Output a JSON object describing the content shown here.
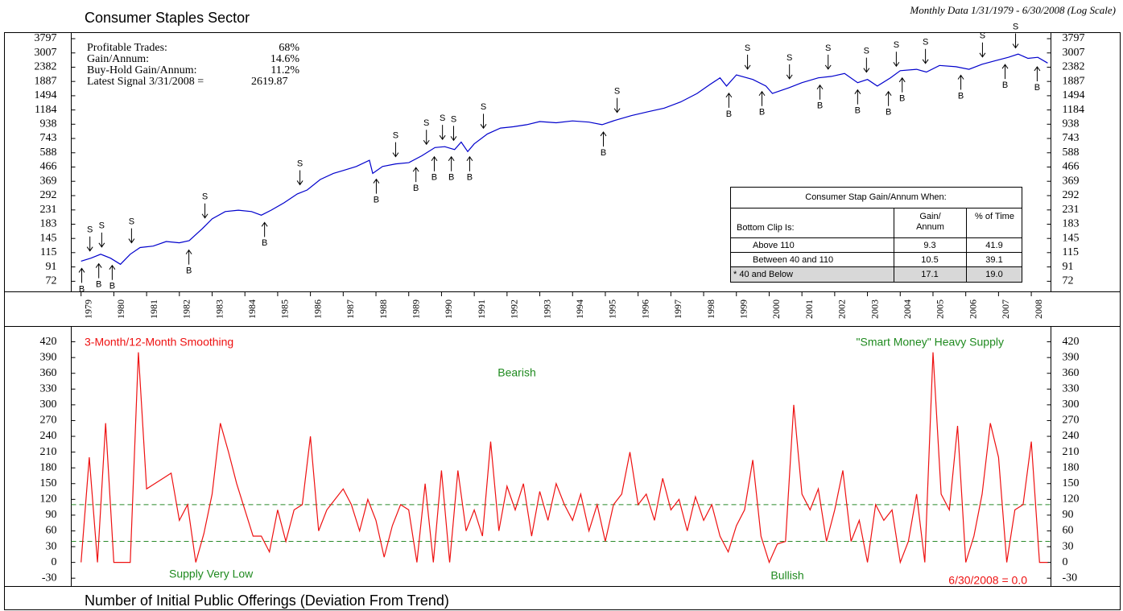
{
  "chart_data": [
    {
      "type": "line",
      "title": "Consumer Staples Sector",
      "subtitle": "Monthly Data 1/31/1979 - 6/30/2008 (Log Scale)",
      "x": [
        1979.0,
        1979.3,
        1979.6,
        1979.9,
        1980.2,
        1980.5,
        1980.8,
        1981.2,
        1981.6,
        1982.0,
        1982.3,
        1982.7,
        1983.0,
        1983.4,
        1983.8,
        1984.2,
        1984.5,
        1984.8,
        1985.2,
        1985.6,
        1985.9,
        1986.3,
        1986.7,
        1987.0,
        1987.4,
        1987.8,
        1987.9,
        1988.2,
        1988.6,
        1989.0,
        1989.4,
        1989.8,
        1990.1,
        1990.4,
        1990.6,
        1990.8,
        1991.0,
        1991.4,
        1991.8,
        1992.2,
        1992.6,
        1993.0,
        1993.5,
        1994.0,
        1994.5,
        1994.9,
        1995.3,
        1995.8,
        1996.3,
        1996.8,
        1997.3,
        1997.8,
        1998.2,
        1998.5,
        1998.7,
        1999.0,
        1999.5,
        1999.9,
        2000.1,
        2000.6,
        2001.0,
        2001.5,
        2001.9,
        2002.3,
        2002.7,
        2003.0,
        2003.3,
        2003.7,
        2004.0,
        2004.5,
        2004.8,
        2005.2,
        2005.7,
        2006.1,
        2006.5,
        2006.9,
        2007.3,
        2007.6,
        2007.9,
        2008.2,
        2008.5
      ],
      "values": [
        100,
        105,
        112,
        105,
        95,
        112,
        125,
        128,
        138,
        135,
        140,
        170,
        200,
        225,
        230,
        225,
        212,
        230,
        260,
        300,
        320,
        380,
        420,
        440,
        470,
        520,
        420,
        470,
        490,
        500,
        560,
        640,
        650,
        620,
        700,
        600,
        680,
        800,
        880,
        900,
        930,
        980,
        960,
        990,
        970,
        930,
        1000,
        1080,
        1150,
        1220,
        1350,
        1550,
        1800,
        2000,
        1750,
        2100,
        1950,
        1750,
        1550,
        1700,
        1850,
        2000,
        2050,
        2150,
        1850,
        1950,
        1750,
        2000,
        2250,
        2300,
        2200,
        2450,
        2400,
        2300,
        2500,
        2650,
        2800,
        2950,
        2750,
        2800,
        2550
      ],
      "color": "#0000cc",
      "log_scale": true,
      "ylim": [
        61,
        4220
      ],
      "yticks": [
        72,
        91,
        115,
        145,
        183,
        231,
        292,
        369,
        466,
        588,
        743,
        938,
        1184,
        1494,
        1887,
        2382,
        3007,
        3797
      ],
      "xlim": [
        1978.7,
        2008.6
      ],
      "xticks": [
        1979,
        1980,
        1981,
        1982,
        1983,
        1984,
        1985,
        1986,
        1987,
        1988,
        1989,
        1990,
        1991,
        1992,
        1993,
        1994,
        1995,
        1996,
        1997,
        1998,
        1999,
        2000,
        2001,
        2002,
        2003,
        2004,
        2005,
        2006,
        2007,
        2008
      ],
      "signals": {
        "x": [
          1979.27,
          1979.63,
          1980.54,
          1982.78,
          1985.68,
          1988.6,
          1989.54,
          1990.03,
          1990.37,
          1991.28,
          1995.36,
          1999.34,
          2000.62,
          2001.8,
          2002.97,
          2003.88,
          2004.77,
          2006.51,
          2007.52,
          1979.02,
          1979.54,
          1979.95,
          1982.29,
          1984.6,
          1988.01,
          1989.22,
          1989.78,
          1990.3,
          1990.86,
          1994.94,
          1998.77,
          1999.78,
          2001.55,
          2002.7,
          2003.64,
          2004.06,
          2005.85,
          2007.2,
          2008.18
        ],
        "values": [
          105,
          112,
          120,
          180,
          310,
          490,
          600,
          650,
          640,
          780,
          1010,
          2050,
          1750,
          2050,
          1950,
          2150,
          2250,
          2500,
          2900,
          100,
          108,
          105,
          135,
          212,
          430,
          520,
          620,
          620,
          620,
          930,
          1750,
          1800,
          2000,
          1850,
          1800,
          2250,
          2350,
          2800,
          2700
        ],
        "labels": [
          "S",
          "S",
          "S",
          "S",
          "S",
          "S",
          "S",
          "S",
          "S",
          "S",
          "S",
          "S",
          "S",
          "S",
          "S",
          "S",
          "S",
          "S",
          "S",
          "B",
          "B",
          "B",
          "B",
          "B",
          "B",
          "B",
          "B",
          "B",
          "B",
          "B",
          "B",
          "B",
          "B",
          "B",
          "B",
          "B",
          "B",
          "B",
          "B"
        ]
      },
      "stats": [
        {
          "label": "Profitable Trades:",
          "value": "68%"
        },
        {
          "label": "Gain/Annum:",
          "value": "14.6%"
        },
        {
          "label": "Buy-Hold Gain/Annum:",
          "value": "11.2%"
        },
        {
          "label": "Latest Signal 3/31/2008 =",
          "value": "2619.87"
        }
      ],
      "table": {
        "title": "Consumer Stap Gain/Annum When:",
        "header": [
          "Bottom Clip Is:",
          "Gain/ Annum",
          "% of Time"
        ],
        "rows": [
          [
            "Above 110",
            "9.3",
            "41.9"
          ],
          [
            "Between 40 and 110",
            "10.5",
            "39.1"
          ],
          [
            "* 40 and Below",
            "17.1",
            "19.0"
          ]
        ]
      }
    },
    {
      "type": "line",
      "title": "Number of Initial Public Offerings (Deviation From Trend)",
      "x": [
        1979.0,
        1979.25,
        1979.5,
        1979.75,
        1980.0,
        1980.25,
        1980.5,
        1980.75,
        1981.0,
        1981.25,
        1981.5,
        1981.75,
        1982.0,
        1982.25,
        1982.5,
        1982.75,
        1983.0,
        1983.25,
        1983.5,
        1983.75,
        1984.0,
        1984.25,
        1984.5,
        1984.75,
        1985.0,
        1985.25,
        1985.5,
        1985.75,
        1986.0,
        1986.25,
        1986.5,
        1986.75,
        1987.0,
        1987.25,
        1987.5,
        1987.75,
        1988.0,
        1988.25,
        1988.5,
        1988.75,
        1989.0,
        1989.25,
        1989.5,
        1989.75,
        1990.0,
        1990.25,
        1990.5,
        1990.75,
        1991.0,
        1991.25,
        1991.5,
        1991.75,
        1992.0,
        1992.25,
        1992.5,
        1992.75,
        1993.0,
        1993.25,
        1993.5,
        1993.75,
        1994.0,
        1994.25,
        1994.5,
        1994.75,
        1995.0,
        1995.25,
        1995.5,
        1995.75,
        1996.0,
        1996.25,
        1996.5,
        1996.75,
        1997.0,
        1997.25,
        1997.5,
        1997.75,
        1998.0,
        1998.25,
        1998.5,
        1998.75,
        1999.0,
        1999.25,
        1999.5,
        1999.75,
        2000.0,
        2000.25,
        2000.5,
        2000.75,
        2001.0,
        2001.25,
        2001.5,
        2001.75,
        2002.0,
        2002.25,
        2002.5,
        2002.75,
        2003.0,
        2003.25,
        2003.5,
        2003.75,
        2004.0,
        2004.25,
        2004.5,
        2004.75,
        2005.0,
        2005.25,
        2005.5,
        2005.75,
        2006.0,
        2006.25,
        2006.5,
        2006.75,
        2007.0,
        2007.25,
        2007.5,
        2007.75,
        2008.0,
        2008.25,
        2008.5
      ],
      "values": [
        0,
        200,
        0,
        265,
        0,
        0,
        0,
        400,
        140,
        150,
        160,
        170,
        80,
        110,
        0,
        55,
        130,
        265,
        210,
        150,
        100,
        50,
        50,
        20,
        100,
        40,
        100,
        110,
        240,
        60,
        100,
        120,
        140,
        110,
        60,
        120,
        80,
        10,
        70,
        110,
        100,
        0,
        150,
        0,
        175,
        0,
        175,
        60,
        100,
        50,
        230,
        60,
        145,
        100,
        150,
        50,
        135,
        80,
        150,
        110,
        80,
        130,
        60,
        110,
        40,
        110,
        130,
        210,
        110,
        130,
        80,
        160,
        100,
        120,
        60,
        125,
        80,
        110,
        50,
        20,
        70,
        100,
        195,
        50,
        0,
        35,
        40,
        300,
        130,
        100,
        140,
        40,
        100,
        175,
        40,
        80,
        0,
        110,
        80,
        100,
        0,
        40,
        130,
        0,
        400,
        130,
        100,
        260,
        0,
        50,
        130,
        265,
        200,
        0,
        100,
        110,
        230,
        0,
        0
      ],
      "color": "#ee1111",
      "ylim": [
        -45,
        450
      ],
      "yticks": [
        -30,
        0,
        30,
        60,
        90,
        120,
        150,
        180,
        210,
        240,
        270,
        300,
        330,
        360,
        390,
        420
      ],
      "xlim": [
        1978.7,
        2008.6
      ],
      "thresholds": {
        "values": [
          110,
          40
        ],
        "color": "#2a8a2a"
      },
      "annotations": {
        "smoothing": "3-Month/12-Month Smoothing",
        "heavy_supply": "\"Smart Money\" Heavy Supply",
        "bearish": "Bearish",
        "supply_low": "Supply Very Low",
        "bullish": "Bullish",
        "latest": "6/30/2008 = 0.0"
      }
    }
  ]
}
